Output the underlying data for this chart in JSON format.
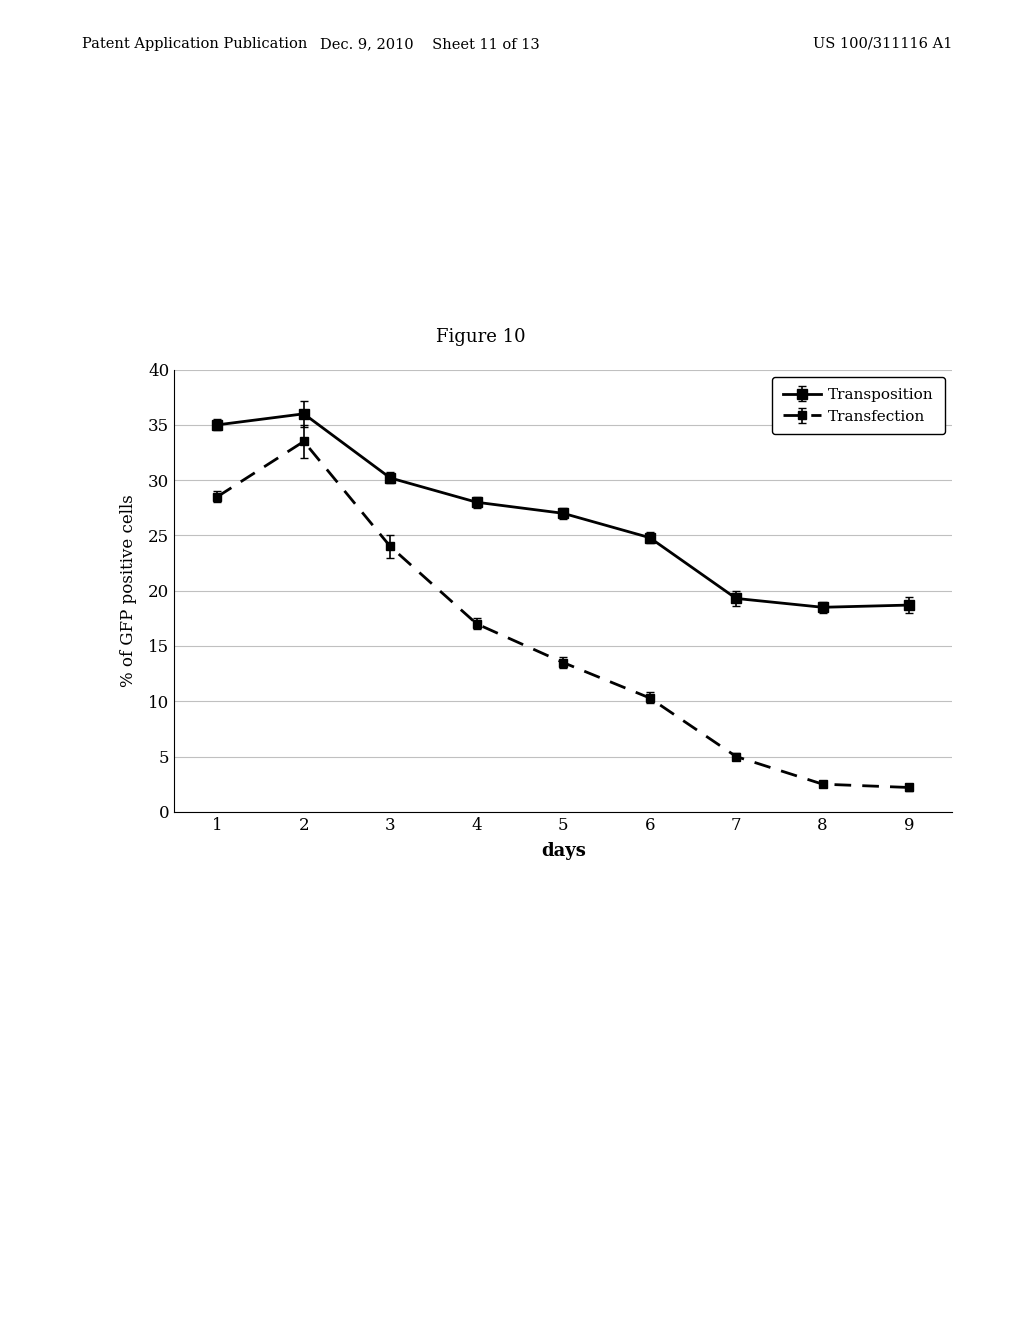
{
  "title": "Figure 10",
  "xlabel": "days",
  "ylabel": "% of GFP positive cells",
  "xlim": [
    0.5,
    9.5
  ],
  "ylim": [
    0,
    40
  ],
  "yticks": [
    0,
    5,
    10,
    15,
    20,
    25,
    30,
    35,
    40
  ],
  "xticks": [
    1,
    2,
    3,
    4,
    5,
    6,
    7,
    8,
    9
  ],
  "transposition_x": [
    1,
    2,
    3,
    4,
    5,
    6,
    7,
    8,
    9
  ],
  "transposition_y": [
    35.0,
    36.0,
    30.2,
    28.0,
    27.0,
    24.8,
    19.3,
    18.5,
    18.7
  ],
  "transposition_yerr": [
    0.5,
    1.2,
    0.5,
    0.5,
    0.5,
    0.5,
    0.7,
    0.5,
    0.7
  ],
  "transfection_x": [
    1,
    2,
    3,
    4,
    5,
    6,
    7,
    8,
    9
  ],
  "transfection_y": [
    28.5,
    33.5,
    24.0,
    17.0,
    13.5,
    10.3,
    5.0,
    2.5,
    2.2
  ],
  "transfection_yerr": [
    0.5,
    1.5,
    1.0,
    0.5,
    0.5,
    0.5,
    0.3,
    0.3,
    0.3
  ],
  "line_color": "#000000",
  "background_color": "#ffffff",
  "grid_color": "#c0c0c0",
  "header_left": "Patent Application Publication",
  "header_center": "Dec. 9, 2010    Sheet 11 of 13",
  "header_right": "US 100/311116 A1"
}
